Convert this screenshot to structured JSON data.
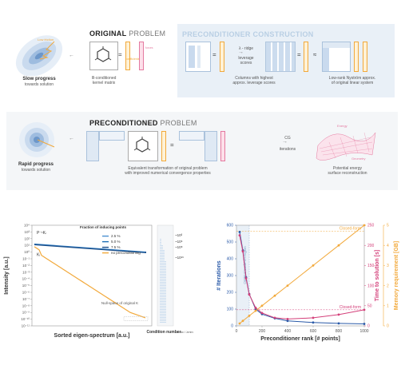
{
  "top": {
    "original": {
      "title_bold": "ORIGINAL",
      "title_light": "PROBLEM",
      "slow_line1": "Slow progress",
      "slow_line2": "towards solution",
      "kernel_caption": "Ill-conditioned\nkernel matrix",
      "low_friction": "Low friction",
      "forces_label": "forces",
      "coefficients_label": "coefficients",
      "eq": "="
    },
    "precond": {
      "title": "PRECONDITIONER CONSTRUCTION",
      "lambda_ridge": "λ - ridge",
      "leverage_scores": "leverage\nscores",
      "columns_caption": "Columns with highest\napprox. leverage scores",
      "nystrom_caption": "Low-rank Nyström approx.\nof original linear system",
      "approx": "≈",
      "eq": "="
    },
    "preconditioned": {
      "title_bold": "PRECONDITIONED",
      "title_light": "PROBLEM",
      "rapid_line1": "Rapid progress",
      "rapid_line2": "towards solution",
      "equiv_caption": "Equivalent transformation of original problem\nwith improved numerical convergence properties",
      "cg_label": "CG",
      "iterations_label": "iterations",
      "pes_caption": "Potential energy\nsurface reconstruction",
      "energy_label": "Energy",
      "geometry_label": "Geometry",
      "eq": "="
    }
  },
  "chart_data": [
    {
      "type": "line",
      "title": "",
      "xlabel": "Sorted eigen-spectrum [a.u.]",
      "ylabel": "Intensity [a.u.]",
      "yscale": "log",
      "ylim": [
        1e-11,
        10000.0
      ],
      "yticks": [
        "10⁴",
        "10³",
        "10²",
        "10¹",
        "10⁰",
        "10⁻¹",
        "10⁻²",
        "10⁻³",
        "10⁻⁴",
        "10⁻⁵",
        "10⁻⁶",
        "10⁻⁷",
        "10⁻⁸",
        "10⁻⁹",
        "10⁻¹⁰",
        "10⁻¹¹"
      ],
      "legend_title": "Fraction of inducing points",
      "series": [
        {
          "name": "2.5 %",
          "color": "#4a8fd0"
        },
        {
          "name": "5.0 %",
          "color": "#1f6fb5"
        },
        {
          "name": "7.5 %",
          "color": "#1d4f8a"
        },
        {
          "name": "no preconditioning",
          "color": "#f2a93b"
        }
      ],
      "curve_labels": {
        "preconditioned": "P⁻¹Kₗ",
        "original": "Kₗ"
      },
      "annotation_nullspace": "Null-space of original K",
      "condition_number_label": "Condition number",
      "condition_ratio": "λmax / λmin",
      "condition_values": [
        "~10³",
        "~10⁶",
        "~10⁸",
        "~10¹⁶"
      ]
    },
    {
      "type": "line",
      "title": "",
      "xlabel": "Preconditioner rank [# points]",
      "xlim": [
        0,
        1000
      ],
      "xticks": [
        0,
        200,
        400,
        600,
        800,
        1000
      ],
      "y_axes": [
        {
          "label": "# Iterations",
          "range": [
            0,
            600
          ],
          "ticks": [
            0,
            100,
            200,
            300,
            400,
            500,
            600
          ],
          "color": "#2a5aa8"
        },
        {
          "label": "Time to solution [s]",
          "range": [
            0,
            250
          ],
          "ticks": [
            0,
            50,
            100,
            150,
            200,
            250
          ],
          "color": "#d4407a"
        },
        {
          "label": "Memory requirement [GB]",
          "range": [
            0,
            5
          ],
          "ticks": [
            0,
            1,
            2,
            3,
            4,
            5
          ],
          "color": "#f2a93b"
        }
      ],
      "annotation_tradeoff": "Optimal trade-off region",
      "closed_form_label": "Closed-form",
      "series": [
        {
          "name": "# Iterations",
          "color": "#2a5aa8",
          "x": [
            25,
            50,
            75,
            100,
            150,
            200,
            300,
            400,
            600,
            800,
            1000
          ],
          "y": [
            560,
            450,
            290,
            190,
            100,
            70,
            45,
            30,
            20,
            15,
            12
          ]
        },
        {
          "name": "Time to solution",
          "color": "#d4407a",
          "x": [
            25,
            50,
            75,
            100,
            150,
            200,
            300,
            400,
            600,
            800,
            1000
          ],
          "y": [
            225,
            185,
            118,
            78,
            45,
            32,
            20,
            17,
            20,
            28,
            40
          ]
        },
        {
          "name": "Memory requirement",
          "color": "#f2a93b",
          "x": [
            25,
            50,
            100,
            150,
            200,
            300,
            400,
            600,
            800,
            1000
          ],
          "y": [
            0.12,
            0.25,
            0.5,
            0.75,
            1.0,
            1.5,
            2.0,
            3.0,
            4.0,
            5.0
          ]
        }
      ],
      "closed_form": {
        "time_s": 40,
        "memory_gb": 4.7
      }
    }
  ]
}
